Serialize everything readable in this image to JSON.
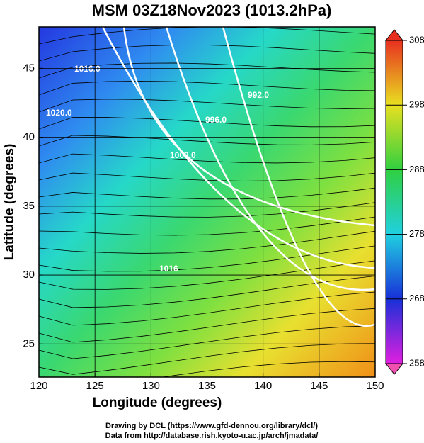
{
  "title": "MSM 03Z18Nov2023 (1013.2hPa)",
  "x_axis": {
    "label": "Longitude (degrees)",
    "range": [
      120,
      150
    ],
    "ticks": [
      120,
      125,
      130,
      135,
      140,
      145,
      150
    ]
  },
  "y_axis": {
    "label": "Latitude  (degrees)",
    "range": [
      22.6,
      48
    ],
    "ticks": [
      25,
      30,
      35,
      40,
      45
    ]
  },
  "colorbar": {
    "range": [
      258,
      308
    ],
    "ticks": [
      258,
      268,
      278,
      288,
      298,
      308
    ]
  },
  "contour_labels": [
    "1016.0",
    "1020.0",
    "992.0",
    "996.0",
    "1008.0",
    "1016"
  ],
  "credits": [
    "Drawing by DCL (https://www.gfd-dennou.org/library/dcl/)",
    "Data from http://database.rish.kyoto-u.ac.jp/arch/jmadata/"
  ]
}
